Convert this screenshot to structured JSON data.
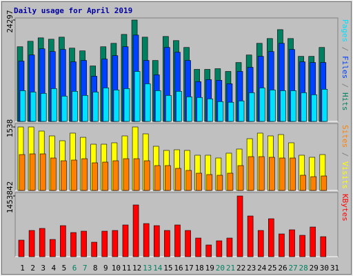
{
  "chart_data": [
    {
      "type": "bar",
      "title": "Daily usage for April 2019",
      "ylim": [
        0,
        24297
      ],
      "yticks": [
        24297
      ],
      "series": [
        {
          "name": "Hits",
          "color": "#008060",
          "values": [
            17895,
            19208,
            20029,
            19700,
            20193,
            17566,
            16910,
            13298,
            17895,
            18715,
            20850,
            24297,
            20193,
            14611,
            20357,
            19372,
            17730,
            12477,
            12477,
            12641,
            11984,
            14119,
            15924,
            18715,
            19865,
            21999,
            19865,
            15596,
            15596,
            17730,
            null
          ]
        },
        {
          "name": "Files",
          "color": "#0040ff",
          "values": [
            14447,
            15924,
            17402,
            16745,
            17238,
            14283,
            14611,
            10835,
            14939,
            15760,
            17895,
            20685,
            14611,
            11164,
            17730,
            16581,
            14611,
            9522,
            10014,
            9850,
            9029,
            11984,
            12969,
            15596,
            16745,
            18715,
            17238,
            14283,
            14119,
            14119,
            null
          ]
        },
        {
          "name": "Pages",
          "color": "#00e0ff",
          "values": [
            7388,
            7059,
            6731,
            7880,
            6074,
            7223,
            6238,
            7059,
            8044,
            7552,
            7880,
            11984,
            9029,
            7388,
            6238,
            7223,
            5910,
            5746,
            5418,
            4761,
            4597,
            4925,
            6895,
            8044,
            7552,
            7388,
            7388,
            6895,
            6403,
            7716,
            null
          ]
        }
      ]
    },
    {
      "type": "bar",
      "ylim": [
        0,
        1538
      ],
      "yticks": [
        1538
      ],
      "series": [
        {
          "name": "Visits",
          "color": "#ffff00",
          "values": [
            1538,
            1538,
            1438,
            1321,
            1204,
            1388,
            1287,
            1120,
            1120,
            1154,
            1321,
            1538,
            1371,
            1070,
            970,
            986,
            970,
            853,
            853,
            786,
            903,
            1003,
            1254,
            1388,
            1321,
            1354,
            1154,
            853,
            803,
            869,
            null
          ]
        },
        {
          "name": "Sites",
          "color": "#ff8000",
          "values": [
            869,
            886,
            886,
            786,
            719,
            736,
            769,
            669,
            686,
            719,
            769,
            769,
            719,
            602,
            602,
            535,
            485,
            418,
            385,
            368,
            418,
            602,
            819,
            819,
            803,
            786,
            786,
            368,
            334,
            351,
            null
          ]
        }
      ]
    },
    {
      "type": "bar",
      "ylim": [
        0,
        1453842
      ],
      "yticks": [
        1453842
      ],
      "categories": [
        "1",
        "2",
        "3",
        "4",
        "5",
        "6",
        "7",
        "8",
        "9",
        "10",
        "11",
        "12",
        "13",
        "14",
        "15",
        "16",
        "17",
        "18",
        "19",
        "20",
        "21",
        "22",
        "23",
        "24",
        "25",
        "26",
        "27",
        "28",
        "29",
        "30",
        "31"
      ],
      "category_colors": [
        "#000000",
        "#000000",
        "#000000",
        "#000000",
        "#000000",
        "#008060",
        "#008060",
        "#000000",
        "#000000",
        "#000000",
        "#000000",
        "#000000",
        "#008060",
        "#008060",
        "#000000",
        "#000000",
        "#000000",
        "#000000",
        "#000000",
        "#008060",
        "#008060",
        "#000000",
        "#000000",
        "#000000",
        "#000000",
        "#000000",
        "#008060",
        "#008060",
        "#000000",
        "#000000",
        "#000000"
      ],
      "series": [
        {
          "name": "KBytes",
          "color": "#ff0000",
          "values": [
            396504,
            627798,
            677361,
            413025,
            743445,
            578235,
            611277,
            346941,
            611277,
            627798,
            759966,
            1239075,
            793008,
            743445,
            627798,
            759966,
            627798,
            446067,
            280857,
            379983,
            446067,
            1453842,
            974739,
            627798,
            908655,
            545193,
            644319,
            512151,
            710403,
            479109,
            null
          ]
        }
      ]
    }
  ]
}
